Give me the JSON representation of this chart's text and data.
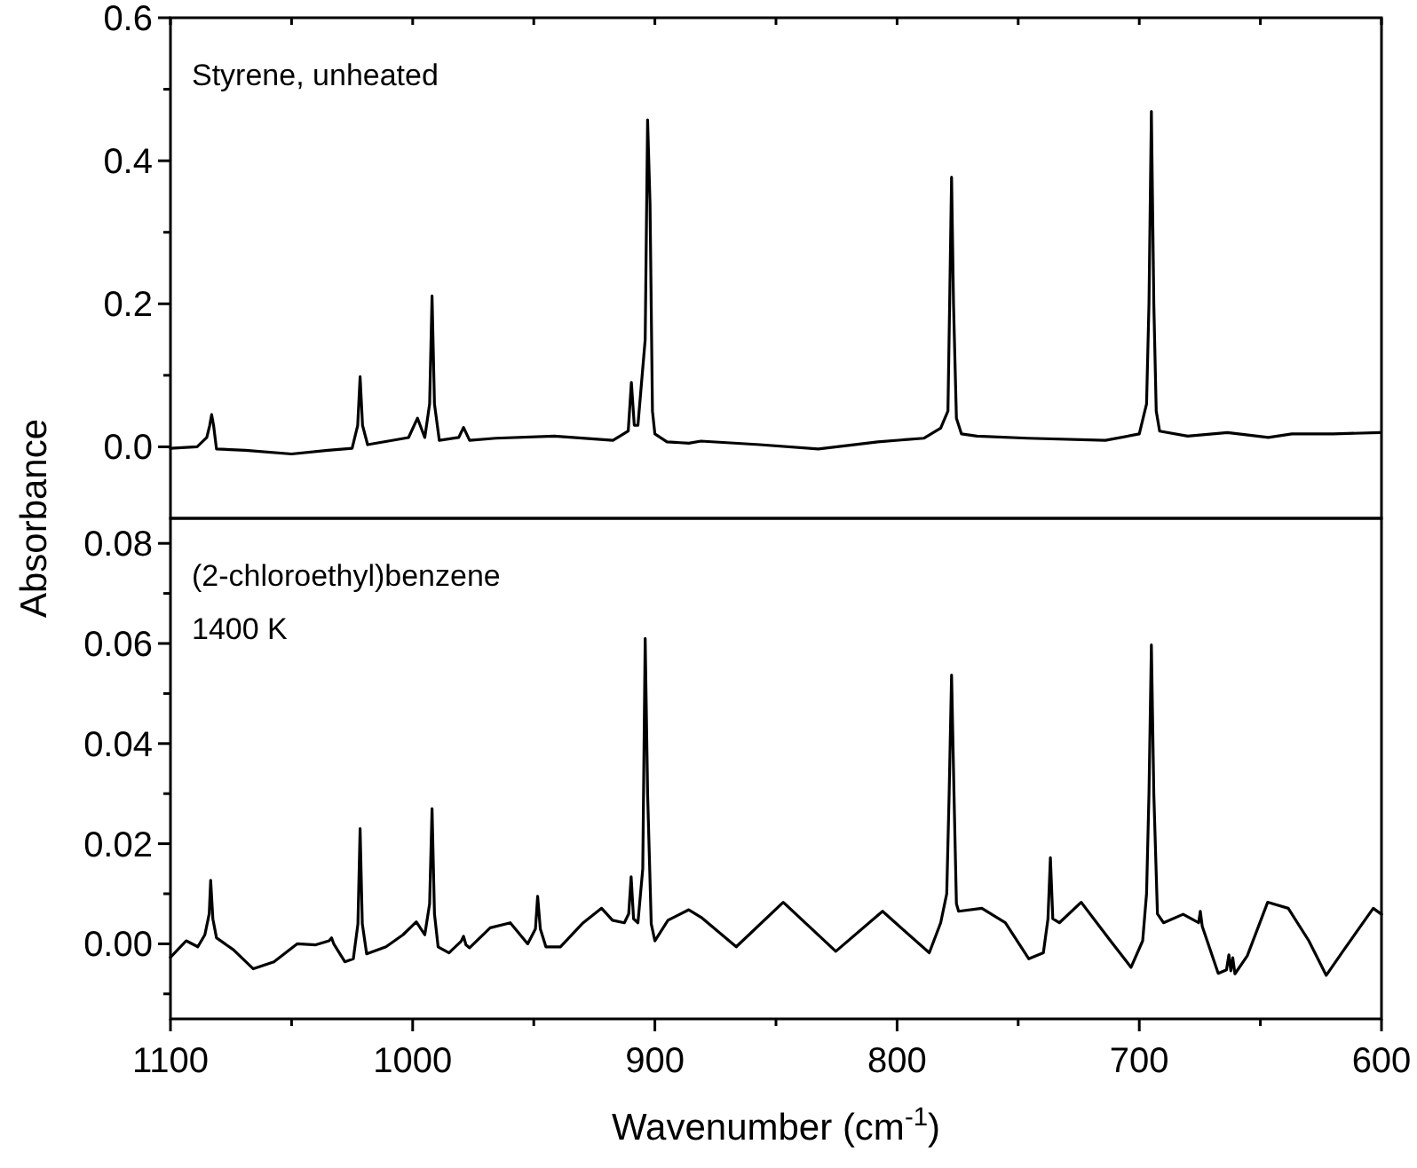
{
  "chart_data": [
    {
      "type": "line",
      "annotations": [
        "Styrene, unheated"
      ],
      "ylabel": "Absorbance",
      "xlim": [
        1100,
        600
      ],
      "xticks": [
        {
          "value": 1100,
          "label": null
        },
        {
          "value": 1050,
          "label": null
        },
        {
          "value": 1000,
          "label": null
        },
        {
          "value": 950,
          "label": null
        },
        {
          "value": 900,
          "label": null
        },
        {
          "value": 850,
          "label": null
        },
        {
          "value": 800,
          "label": null
        },
        {
          "value": 750,
          "label": null
        },
        {
          "value": 700,
          "label": null
        },
        {
          "value": 650,
          "label": null
        },
        {
          "value": 600,
          "label": null
        }
      ],
      "ylim": [
        -0.1,
        0.6
      ],
      "yticks": [
        {
          "value": 0,
          "label": "0.0"
        },
        {
          "value": 0.1,
          "label": null
        },
        {
          "value": 0.2,
          "label": "0.2"
        },
        {
          "value": 0.3,
          "label": null
        },
        {
          "value": 0.4,
          "label": "0.4"
        },
        {
          "value": 0.5,
          "label": null
        },
        {
          "value": 0.6,
          "label": "0.6"
        }
      ],
      "tick_labels": "y",
      "series": [
        {
          "color": "#000000",
          "x": [
            1100,
            1089,
            1085,
            1083.8,
            1083,
            1082.2,
            1081,
            1069,
            1050,
            1035,
            1025,
            1022.7,
            1021.7,
            1020.7,
            1018.6,
            1001.7,
            998,
            995,
            993,
            992,
            991,
            989,
            981,
            979,
            976.5,
            965.7,
            941.5,
            917.3,
            911,
            909.7,
            908.5,
            907,
            904,
            903,
            902,
            901,
            900,
            895,
            886,
            881,
            856.7,
            832.5,
            808,
            789,
            782,
            779,
            778.3,
            777.5,
            776.7,
            775.5,
            773.4,
            767,
            746,
            714,
            700,
            697,
            696,
            695,
            694,
            693,
            691.6,
            680,
            663.6,
            646.7,
            637,
            620,
            600.5
          ],
          "values": [
            -0.002,
            0,
            0.013,
            0.03,
            0.045,
            0.03,
            -0.003,
            -0.005,
            -0.01,
            -0.005,
            -0.002,
            0.03,
            0.098,
            0.03,
            0.003,
            0.013,
            0.04,
            0.013,
            0.06,
            0.211,
            0.06,
            0.009,
            0.013,
            0.027,
            0.009,
            0.012,
            0.015,
            0.009,
            0.022,
            0.09,
            0.03,
            0.03,
            0.15,
            0.457,
            0.34,
            0.05,
            0.018,
            0.007,
            0.005,
            0.008,
            0.003,
            -0.003,
            0.007,
            0.012,
            0.026,
            0.05,
            0.2,
            0.377,
            0.2,
            0.04,
            0.018,
            0.015,
            0.012,
            0.009,
            0.018,
            0.06,
            0.2,
            0.469,
            0.2,
            0.05,
            0.022,
            0.015,
            0.02,
            0.013,
            0.018,
            0.018,
            0.02
          ]
        }
      ]
    },
    {
      "type": "line",
      "annotations": [
        "(2-chloroethyl)benzene",
        "1400 K"
      ],
      "xlabel": "Wavenumber (cm$^{-1}$)",
      "xlim": [
        1100,
        600
      ],
      "xticks": [
        1100,
        {
          "value": 1050,
          "label": null
        },
        1000,
        {
          "value": 950,
          "label": null
        },
        900,
        {
          "value": 850,
          "label": null
        },
        800,
        {
          "value": 750,
          "label": null
        },
        700,
        {
          "value": 650,
          "label": null
        },
        600
      ],
      "ylim": [
        -0.015,
        0.085
      ],
      "yticks": [
        {
          "value": -0.01,
          "label": null
        },
        {
          "value": 0,
          "label": "0.00"
        },
        {
          "value": 0.01,
          "label": null
        },
        {
          "value": 0.02,
          "label": "0.02"
        },
        {
          "value": 0.03,
          "label": null
        },
        {
          "value": 0.04,
          "label": "0.04"
        },
        {
          "value": 0.05,
          "label": null
        },
        {
          "value": 0.06,
          "label": "0.06"
        },
        {
          "value": 0.07,
          "label": null
        },
        {
          "value": 0.08,
          "label": "0.08"
        }
      ],
      "series": [
        {
          "color": "#000000",
          "x": [
            1100,
            1093.5,
            1088.7,
            1085.8,
            1084,
            1083.4,
            1082.5,
            1081,
            1074,
            1065.8,
            1057.3,
            1047.7,
            1040,
            1034.5,
            1033.5,
            1032.5,
            1028,
            1024.5,
            1022.6,
            1021.7,
            1020.8,
            1019,
            1011,
            1004,
            998.5,
            995,
            993,
            992,
            991,
            989.5,
            985,
            980,
            979,
            978,
            976.5,
            968,
            959.7,
            952.5,
            949.3,
            948.4,
            947.3,
            945,
            939,
            929.6,
            922,
            917.5,
            912.6,
            910.8,
            909.8,
            908.8,
            907,
            905,
            904,
            903,
            901.5,
            900,
            894.6,
            886,
            880.9,
            866.4,
            847,
            825.3,
            806,
            786.7,
            782,
            779.5,
            778.5,
            777.5,
            776.5,
            775.5,
            774.6,
            765,
            755.3,
            745.6,
            739.6,
            737.7,
            736.7,
            735.7,
            733,
            724,
            711.9,
            703.4,
            698.6,
            697,
            696,
            695,
            694,
            692.5,
            690,
            681.9,
            675.5,
            674.8,
            674,
            667.4,
            664,
            663,
            662.2,
            661.4,
            660.5,
            655.4,
            647,
            638.5,
            630,
            622.8,
            615.5,
            603.4,
            600
          ],
          "values": [
            -0.0027,
            0.0006,
            -0.0006,
            0.0018,
            0.006,
            0.0127,
            0.005,
            0.0012,
            -0.0012,
            -0.005,
            -0.0036,
            0,
            -0.0002,
            0.0006,
            0.0012,
            -0.0001,
            -0.0036,
            -0.003,
            0.004,
            0.023,
            0.004,
            -0.002,
            -0.0006,
            0.0018,
            0.0044,
            0.0018,
            0.008,
            0.027,
            0.006,
            -0.0006,
            -0.0018,
            0.0005,
            0.0015,
            -0.0002,
            -0.0008,
            0.0032,
            0.0042,
            0,
            0.003,
            0.0095,
            0.003,
            -0.0006,
            -0.0006,
            0.0042,
            0.0071,
            0.0047,
            0.0042,
            0.006,
            0.0134,
            0.005,
            0.0042,
            0.015,
            0.061,
            0.03,
            0.004,
            0.0006,
            0.0047,
            0.0068,
            0.0053,
            -0.0006,
            0.0083,
            -0.0015,
            0.0065,
            -0.0018,
            0.0042,
            0.01,
            0.03,
            0.0537,
            0.03,
            0.008,
            0.0065,
            0.0071,
            0.0042,
            -0.003,
            -0.0018,
            0.005,
            0.0172,
            0.005,
            0.0042,
            0.0083,
            0.0006,
            -0.0047,
            0.0006,
            0.01,
            0.03,
            0.0597,
            0.03,
            0.006,
            0.0042,
            0.0059,
            0.0042,
            0.0065,
            0.0035,
            -0.0059,
            -0.0052,
            -0.0022,
            -0.0054,
            -0.0028,
            -0.006,
            -0.0024,
            0.0083,
            0.0071,
            0.0006,
            -0.0063,
            -0.0012,
            0.0071,
            0.0059
          ]
        }
      ]
    }
  ]
}
